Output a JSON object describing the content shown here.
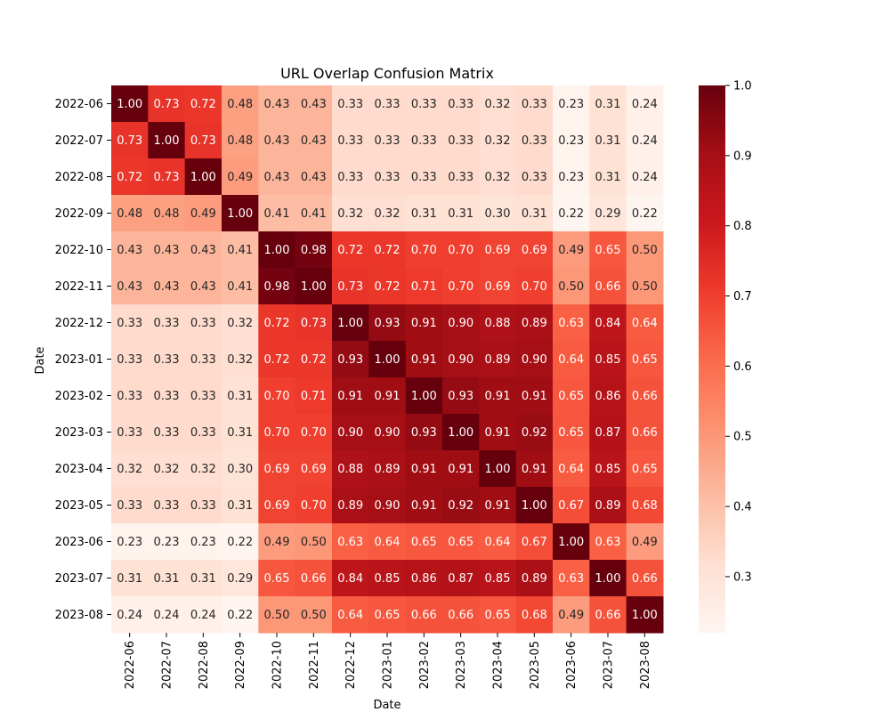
{
  "chart_data": {
    "type": "heatmap",
    "title": "URL Overlap Confusion Matrix",
    "xlabel": "Date",
    "ylabel": "Date",
    "categories": [
      "2022-06",
      "2022-07",
      "2022-08",
      "2022-09",
      "2022-10",
      "2022-11",
      "2022-12",
      "2023-01",
      "2023-02",
      "2023-03",
      "2023-04",
      "2023-05",
      "2023-06",
      "2023-07",
      "2023-08"
    ],
    "values": [
      [
        1.0,
        0.73,
        0.72,
        0.48,
        0.43,
        0.43,
        0.33,
        0.33,
        0.33,
        0.33,
        0.32,
        0.33,
        0.23,
        0.31,
        0.24
      ],
      [
        0.73,
        1.0,
        0.73,
        0.48,
        0.43,
        0.43,
        0.33,
        0.33,
        0.33,
        0.33,
        0.32,
        0.33,
        0.23,
        0.31,
        0.24
      ],
      [
        0.72,
        0.73,
        1.0,
        0.49,
        0.43,
        0.43,
        0.33,
        0.33,
        0.33,
        0.33,
        0.32,
        0.33,
        0.23,
        0.31,
        0.24
      ],
      [
        0.48,
        0.48,
        0.49,
        1.0,
        0.41,
        0.41,
        0.32,
        0.32,
        0.31,
        0.31,
        0.3,
        0.31,
        0.22,
        0.29,
        0.22
      ],
      [
        0.43,
        0.43,
        0.43,
        0.41,
        1.0,
        0.98,
        0.72,
        0.72,
        0.7,
        0.7,
        0.69,
        0.69,
        0.49,
        0.65,
        0.5
      ],
      [
        0.43,
        0.43,
        0.43,
        0.41,
        0.98,
        1.0,
        0.73,
        0.72,
        0.71,
        0.7,
        0.69,
        0.7,
        0.5,
        0.66,
        0.5
      ],
      [
        0.33,
        0.33,
        0.33,
        0.32,
        0.72,
        0.73,
        1.0,
        0.93,
        0.91,
        0.9,
        0.88,
        0.89,
        0.63,
        0.84,
        0.64
      ],
      [
        0.33,
        0.33,
        0.33,
        0.32,
        0.72,
        0.72,
        0.93,
        1.0,
        0.91,
        0.9,
        0.89,
        0.9,
        0.64,
        0.85,
        0.65
      ],
      [
        0.33,
        0.33,
        0.33,
        0.31,
        0.7,
        0.71,
        0.91,
        0.91,
        1.0,
        0.93,
        0.91,
        0.91,
        0.65,
        0.86,
        0.66
      ],
      [
        0.33,
        0.33,
        0.33,
        0.31,
        0.7,
        0.7,
        0.9,
        0.9,
        0.93,
        1.0,
        0.91,
        0.92,
        0.65,
        0.87,
        0.66
      ],
      [
        0.32,
        0.32,
        0.32,
        0.3,
        0.69,
        0.69,
        0.88,
        0.89,
        0.91,
        0.91,
        1.0,
        0.91,
        0.64,
        0.85,
        0.65
      ],
      [
        0.33,
        0.33,
        0.33,
        0.31,
        0.69,
        0.7,
        0.89,
        0.9,
        0.91,
        0.92,
        0.91,
        1.0,
        0.67,
        0.89,
        0.68
      ],
      [
        0.23,
        0.23,
        0.23,
        0.22,
        0.49,
        0.5,
        0.63,
        0.64,
        0.65,
        0.65,
        0.64,
        0.67,
        1.0,
        0.63,
        0.49
      ],
      [
        0.31,
        0.31,
        0.31,
        0.29,
        0.65,
        0.66,
        0.84,
        0.85,
        0.86,
        0.87,
        0.85,
        0.89,
        0.63,
        1.0,
        0.66
      ],
      [
        0.24,
        0.24,
        0.24,
        0.22,
        0.5,
        0.5,
        0.64,
        0.65,
        0.66,
        0.66,
        0.65,
        0.68,
        0.49,
        0.66,
        1.0
      ]
    ],
    "value_format": "0.00",
    "colorscale": "Reds",
    "colorscale_stops": [
      "#fff5f0",
      "#fee0d2",
      "#fcbba1",
      "#fc9272",
      "#fb6a4a",
      "#ef3b2c",
      "#cb181d",
      "#a50f15",
      "#67000d"
    ],
    "zlim": [
      0.22,
      1.0
    ],
    "colorbar_ticks": [
      "0.3",
      "0.4",
      "0.5",
      "0.6",
      "0.7",
      "0.8",
      "0.9",
      "1.0"
    ],
    "grid": false,
    "legend": "colorbar-right"
  }
}
